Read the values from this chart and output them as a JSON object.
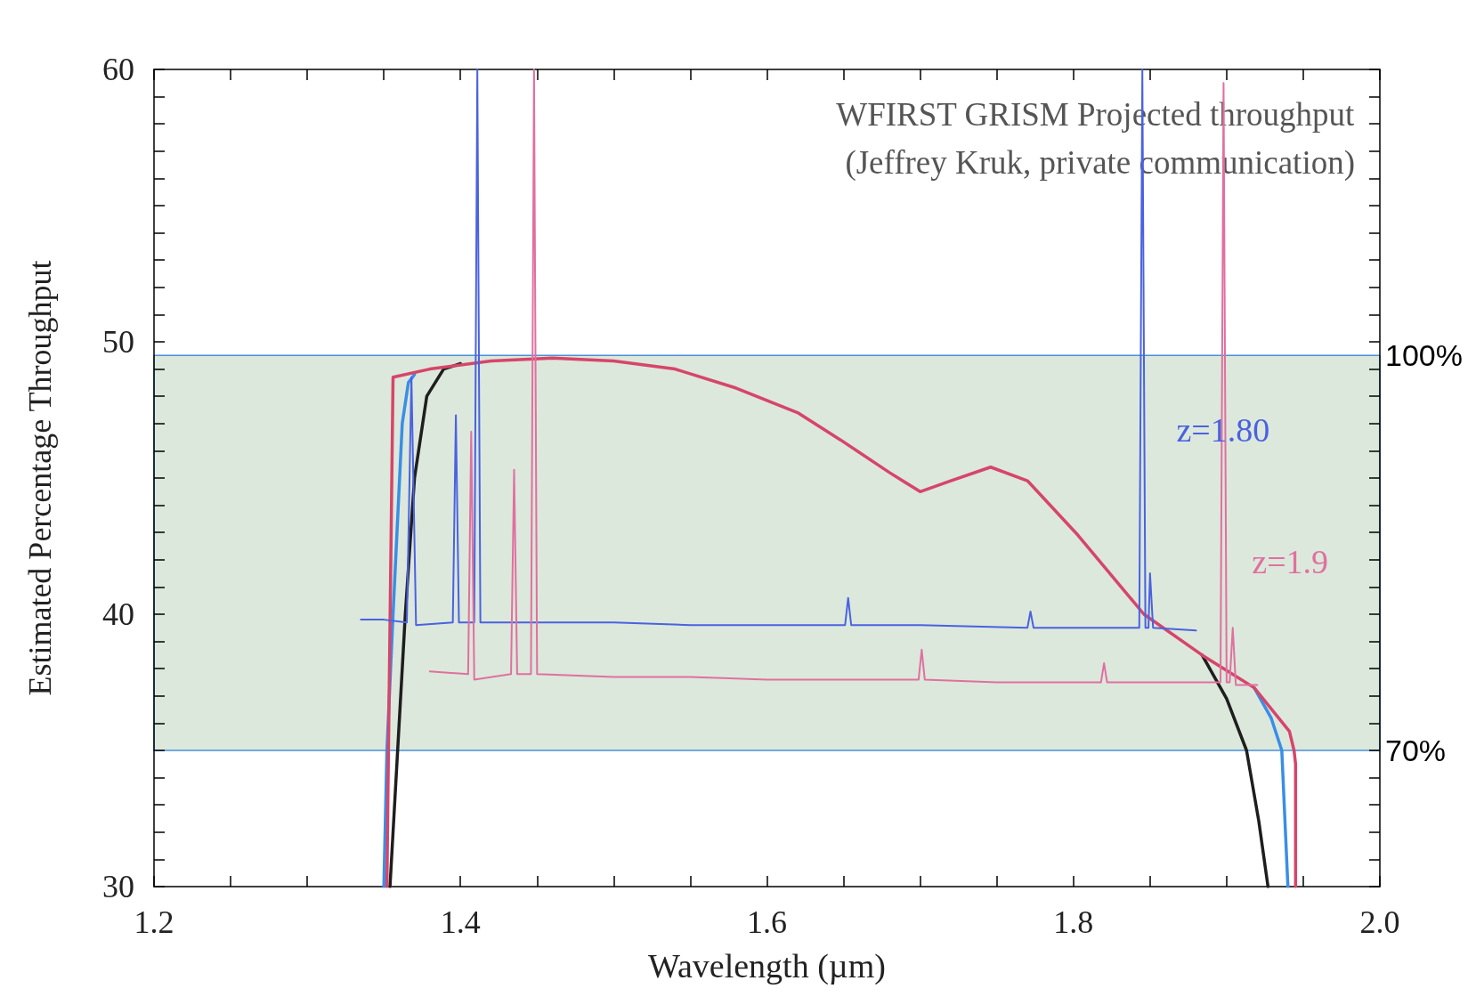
{
  "chart_data": {
    "type": "line",
    "xlabel": "Wavelength (µm)",
    "ylabel": "Estimated Percentage Throughput",
    "annotations": [
      "WFIRST GRISM Projected throughput",
      "(Jeffrey Kruk, private communication)"
    ],
    "xlim": [
      1.2,
      2.0
    ],
    "xticks": [
      1.2,
      {
        "value": 1.25,
        "label": null
      },
      {
        "value": 1.3,
        "label": null
      },
      {
        "value": 1.35,
        "label": null
      },
      1.4,
      {
        "value": 1.45,
        "label": null
      },
      {
        "value": 1.5,
        "label": null
      },
      {
        "value": 1.55,
        "label": null
      },
      1.6,
      {
        "value": 1.65,
        "label": null
      },
      {
        "value": 1.7,
        "label": null
      },
      {
        "value": 1.75,
        "label": null
      },
      1.8,
      {
        "value": 1.85,
        "label": null
      },
      {
        "value": 1.9,
        "label": null
      },
      {
        "value": 1.95,
        "label": null
      },
      {
        "value": 2,
        "label": "2.0"
      }
    ],
    "ylim": [
      30,
      60
    ],
    "yticks": [
      30,
      {
        "value": 31,
        "label": null
      },
      {
        "value": 32,
        "label": null
      },
      {
        "value": 33,
        "label": null
      },
      {
        "value": 34,
        "label": null
      },
      {
        "value": 35,
        "label": null
      },
      {
        "value": 36,
        "label": null
      },
      {
        "value": 37,
        "label": null
      },
      {
        "value": 38,
        "label": null
      },
      {
        "value": 39,
        "label": null
      },
      40,
      {
        "value": 41,
        "label": null
      },
      {
        "value": 42,
        "label": null
      },
      {
        "value": 43,
        "label": null
      },
      {
        "value": 44,
        "label": null
      },
      {
        "value": 45,
        "label": null
      },
      {
        "value": 46,
        "label": null
      },
      {
        "value": 47,
        "label": null
      },
      {
        "value": 48,
        "label": null
      },
      {
        "value": 49,
        "label": null
      },
      50,
      {
        "value": 51,
        "label": null
      },
      {
        "value": 52,
        "label": null
      },
      {
        "value": 53,
        "label": null
      },
      {
        "value": 54,
        "label": null
      },
      {
        "value": 55,
        "label": null
      },
      {
        "value": 56,
        "label": null
      },
      {
        "value": 57,
        "label": null
      },
      {
        "value": 58,
        "label": null
      },
      {
        "value": 59,
        "label": null
      },
      60
    ],
    "y2lim": [
      59.66,
      121.72
    ],
    "y2ticks": [
      {
        "value": 70,
        "label": "70%"
      },
      {
        "value": 100,
        "label": "100%"
      }
    ],
    "bands": [
      {
        "axis": "y",
        "from": 35,
        "to": 49.5,
        "color": "#dce8dc"
      }
    ],
    "marker": "none",
    "series": [
      {
        "color": "#1e1e1e",
        "x": [
          1.354,
          1.359,
          1.364,
          1.37,
          1.378,
          1.389,
          1.4,
          1.42,
          1.46,
          1.5,
          1.54,
          1.58,
          1.62,
          1.648,
          1.68,
          1.7,
          1.72,
          1.746,
          1.77,
          1.803,
          1.846,
          1.884,
          1.9,
          1.913,
          1.921,
          1.927
        ],
        "values": [
          30,
          35,
          40,
          45,
          48,
          49,
          49.2,
          null,
          null,
          null,
          null,
          null,
          null,
          null,
          null,
          null,
          null,
          null,
          null,
          null,
          null,
          38.5,
          36.9,
          35,
          32.4,
          30
        ]
      },
      {
        "color": "#3a8ee6",
        "x": [
          1.35,
          1.352,
          1.356,
          1.362,
          1.366,
          1.37,
          1.38,
          1.42,
          1.46,
          1.5,
          1.54,
          1.58,
          1.62,
          1.648,
          1.68,
          1.7,
          1.72,
          1.746,
          1.77,
          1.803,
          1.846,
          1.884,
          1.918,
          1.929,
          1.936,
          1.94
        ],
        "values": [
          30,
          35,
          40,
          47,
          48.5,
          48.8,
          null,
          null,
          null,
          null,
          null,
          null,
          null,
          null,
          null,
          null,
          null,
          null,
          null,
          null,
          null,
          null,
          37.3,
          36.2,
          35,
          30
        ]
      },
      {
        "color": "#d6456a",
        "x": [
          1.352,
          1.353,
          1.356,
          1.38,
          1.42,
          1.46,
          1.5,
          1.54,
          1.58,
          1.62,
          1.648,
          1.68,
          1.7,
          1.72,
          1.746,
          1.77,
          1.803,
          1.846,
          1.884,
          1.918,
          1.941,
          1.944,
          1.945,
          1.945
        ],
        "values": [
          30,
          35,
          48.7,
          49,
          49.3,
          49.4,
          49.3,
          49,
          48.3,
          47.4,
          46.4,
          45.2,
          44.5,
          44.9,
          45.4,
          44.9,
          42.9,
          40,
          38.5,
          37.3,
          35.7,
          35,
          34.5,
          30
        ]
      },
      {
        "name": "z=1.80",
        "color": "#4a62e0",
        "x": [
          1.335,
          1.35,
          1.365,
          1.368,
          1.371,
          1.395,
          1.397,
          1.399,
          1.409,
          1.411,
          1.413,
          1.45,
          1.5,
          1.55,
          1.6,
          1.651,
          1.653,
          1.655,
          1.7,
          1.77,
          1.772,
          1.774,
          1.82,
          1.843,
          1.845,
          1.847,
          1.849,
          1.85,
          1.852,
          1.88
        ],
        "values": [
          39.8,
          39.8,
          39.7,
          48.7,
          39.6,
          39.7,
          47.3,
          39.7,
          39.7,
          60,
          39.7,
          39.7,
          39.7,
          39.6,
          39.6,
          39.6,
          40.6,
          39.6,
          39.6,
          39.5,
          40.1,
          39.5,
          39.5,
          39.5,
          60,
          39.5,
          39.5,
          41.5,
          39.5,
          39.4
        ]
      },
      {
        "name": "z=1.9",
        "color": "#e0709f",
        "x": [
          1.38,
          1.405,
          1.407,
          1.409,
          1.433,
          1.435,
          1.437,
          1.446,
          1.448,
          1.45,
          1.5,
          1.55,
          1.6,
          1.65,
          1.699,
          1.701,
          1.703,
          1.75,
          1.818,
          1.82,
          1.822,
          1.87,
          1.896,
          1.898,
          1.9,
          1.902,
          1.904,
          1.906,
          1.92
        ],
        "values": [
          37.9,
          37.8,
          46.7,
          37.6,
          37.8,
          45.3,
          37.8,
          37.8,
          60,
          37.8,
          37.7,
          37.7,
          37.6,
          37.6,
          37.6,
          38.7,
          37.6,
          37.5,
          37.5,
          38.2,
          37.5,
          37.5,
          37.5,
          59.5,
          37.5,
          37.5,
          39.5,
          37.4,
          37.4
        ]
      }
    ]
  }
}
